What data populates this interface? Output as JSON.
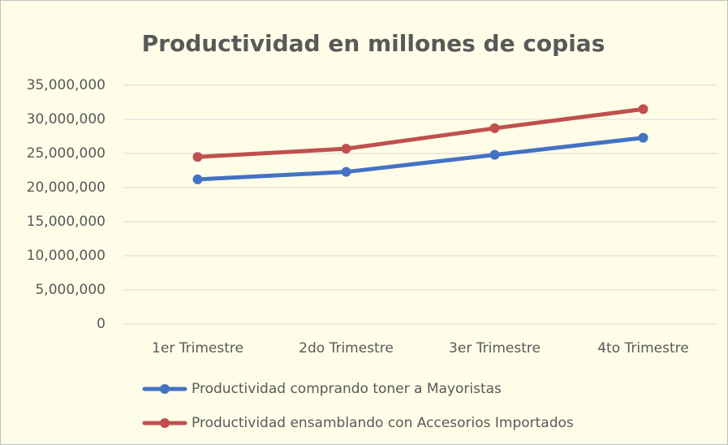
{
  "chart_data": {
    "type": "line",
    "title": "Productividad en millones de copias",
    "categories": [
      "1er Trimestre",
      "2do Trimestre",
      "3er Trimestre",
      "4to Trimestre"
    ],
    "series": [
      {
        "name": "Productividad comprando toner a Mayoristas",
        "color": "#4472c4",
        "values": [
          21200000,
          22300000,
          24800000,
          27300000
        ]
      },
      {
        "name": "Productividad ensamblando con Accesorios Importados",
        "color": "#c0504d",
        "values": [
          24500000,
          25700000,
          28700000,
          31500000
        ]
      }
    ],
    "ylim": [
      0,
      35000000
    ],
    "yticks": [
      0,
      {
        "value": 5000000,
        "label": "5,000,000"
      },
      {
        "value": 10000000,
        "label": "10,000,000"
      },
      {
        "value": 15000000,
        "label": "15,000,000"
      },
      {
        "value": 20000000,
        "label": "20,000,000"
      },
      {
        "value": 25000000,
        "label": "25,000,000"
      },
      {
        "value": 30000000,
        "label": "30,000,000"
      },
      {
        "value": 35000000,
        "label": "35,000,000"
      }
    ],
    "grid": true,
    "legend": "bottom"
  }
}
